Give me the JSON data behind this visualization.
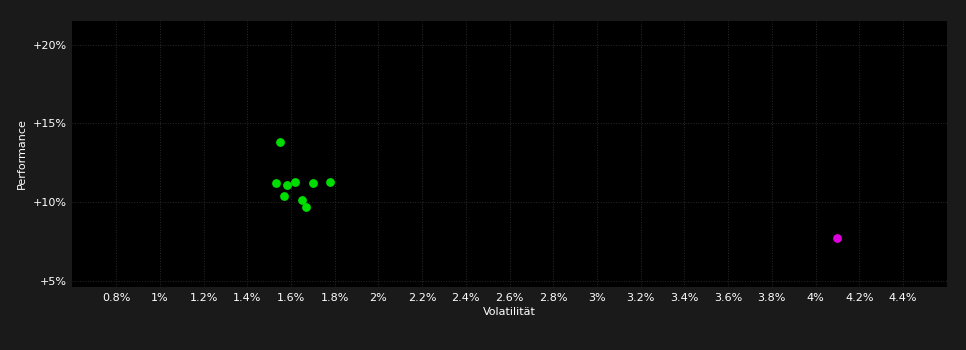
{
  "background_color": "#1a1a1a",
  "plot_bg_color": "#000000",
  "grid_color": "#2a2a2a",
  "grid_style": ":",
  "xlabel": "Volatilität",
  "ylabel": "Performance",
  "xlabel_color": "#ffffff",
  "ylabel_color": "#ffffff",
  "tick_color": "#ffffff",
  "xlim": [
    0.006,
    0.046
  ],
  "ylim": [
    0.046,
    0.215
  ],
  "xticks": [
    0.008,
    0.01,
    0.012,
    0.014,
    0.016,
    0.018,
    0.02,
    0.022,
    0.024,
    0.026,
    0.028,
    0.03,
    0.032,
    0.034,
    0.036,
    0.038,
    0.04,
    0.042,
    0.044
  ],
  "yticks": [
    0.05,
    0.1,
    0.15,
    0.2
  ],
  "green_points": [
    [
      0.0155,
      0.138
    ],
    [
      0.0153,
      0.112
    ],
    [
      0.0158,
      0.111
    ],
    [
      0.0162,
      0.113
    ],
    [
      0.017,
      0.112
    ],
    [
      0.0178,
      0.113
    ],
    [
      0.0157,
      0.104
    ],
    [
      0.0165,
      0.101
    ],
    [
      0.0167,
      0.097
    ]
  ],
  "magenta_points": [
    [
      0.041,
      0.077
    ]
  ],
  "green_color": "#00dd00",
  "magenta_color": "#dd00dd",
  "marker_size": 40,
  "tick_labelsize": 8,
  "label_fontsize": 8
}
